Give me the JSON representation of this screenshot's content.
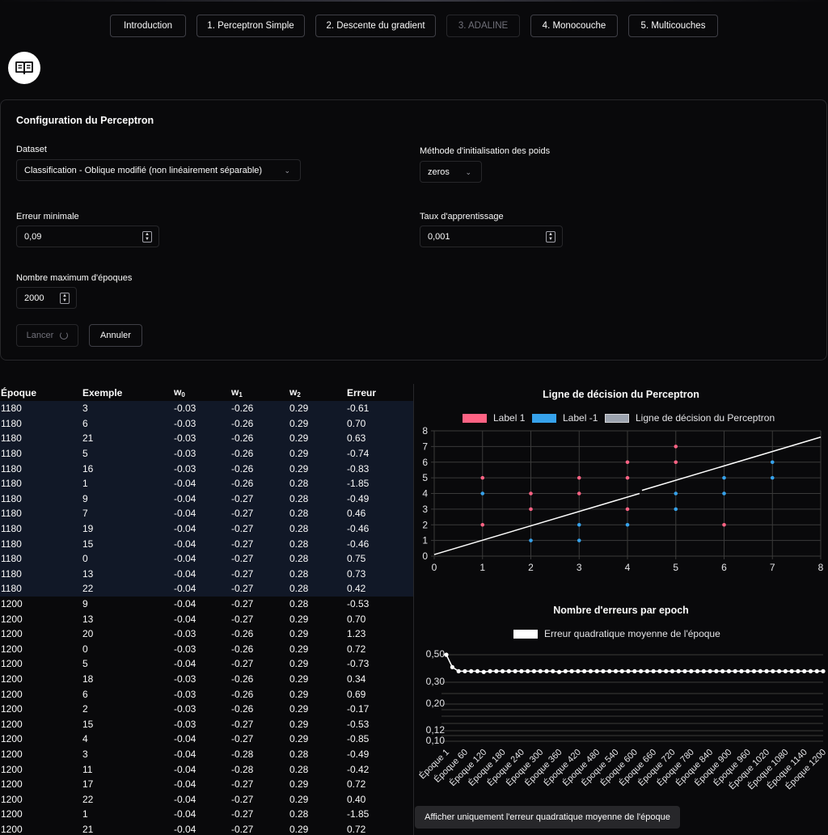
{
  "nav": {
    "tabs": [
      {
        "label": "Introduction",
        "disabled": false
      },
      {
        "label": "1. Perceptron Simple",
        "disabled": false
      },
      {
        "label": "2. Descente du gradient",
        "disabled": false
      },
      {
        "label": "3. ADALINE",
        "disabled": true
      },
      {
        "label": "4. Monocouche",
        "disabled": false
      },
      {
        "label": "5. Multicouches",
        "disabled": false
      }
    ]
  },
  "config": {
    "title": "Configuration du Perceptron",
    "dataset_label": "Dataset",
    "dataset_value": "Classification - Oblique modifié (non linéairement séparable)",
    "init_label": "Méthode d'initialisation des poids",
    "init_value": "zeros",
    "min_error_label": "Erreur minimale",
    "min_error_value": "0,09",
    "lr_label": "Taux d'apprentissage",
    "lr_value": "0,001",
    "max_epochs_label": "Nombre maximum d'époques",
    "max_epochs_value": "2000",
    "run_label": "Lancer",
    "cancel_label": "Annuler"
  },
  "table": {
    "headers": {
      "epoch": "Époque",
      "example": "Exemple",
      "w0": "w",
      "w1": "w",
      "w2": "w",
      "w0_sub": "0",
      "w1_sub": "1",
      "w2_sub": "2",
      "error": "Erreur"
    },
    "rows": [
      {
        "e": "1180",
        "x": "3",
        "w0": "-0.03",
        "w1": "-0.26",
        "w2": "0.29",
        "err": "-0.61",
        "hl": true
      },
      {
        "e": "1180",
        "x": "6",
        "w0": "-0.03",
        "w1": "-0.26",
        "w2": "0.29",
        "err": "0.70",
        "hl": true
      },
      {
        "e": "1180",
        "x": "21",
        "w0": "-0.03",
        "w1": "-0.26",
        "w2": "0.29",
        "err": "0.63",
        "hl": true
      },
      {
        "e": "1180",
        "x": "5",
        "w0": "-0.03",
        "w1": "-0.26",
        "w2": "0.29",
        "err": "-0.74",
        "hl": true
      },
      {
        "e": "1180",
        "x": "16",
        "w0": "-0.03",
        "w1": "-0.26",
        "w2": "0.29",
        "err": "-0.83",
        "hl": true
      },
      {
        "e": "1180",
        "x": "1",
        "w0": "-0.04",
        "w1": "-0.26",
        "w2": "0.28",
        "err": "-1.85",
        "hl": true
      },
      {
        "e": "1180",
        "x": "9",
        "w0": "-0.04",
        "w1": "-0.27",
        "w2": "0.28",
        "err": "-0.49",
        "hl": true
      },
      {
        "e": "1180",
        "x": "7",
        "w0": "-0.04",
        "w1": "-0.27",
        "w2": "0.28",
        "err": "0.46",
        "hl": true
      },
      {
        "e": "1180",
        "x": "19",
        "w0": "-0.04",
        "w1": "-0.27",
        "w2": "0.28",
        "err": "-0.46",
        "hl": true
      },
      {
        "e": "1180",
        "x": "15",
        "w0": "-0.04",
        "w1": "-0.27",
        "w2": "0.28",
        "err": "-0.46",
        "hl": true
      },
      {
        "e": "1180",
        "x": "0",
        "w0": "-0.04",
        "w1": "-0.27",
        "w2": "0.28",
        "err": "0.75",
        "hl": true
      },
      {
        "e": "1180",
        "x": "13",
        "w0": "-0.04",
        "w1": "-0.27",
        "w2": "0.28",
        "err": "0.73",
        "hl": true
      },
      {
        "e": "1180",
        "x": "22",
        "w0": "-0.04",
        "w1": "-0.27",
        "w2": "0.28",
        "err": "0.42",
        "hl": true
      },
      {
        "e": "1200",
        "x": "9",
        "w0": "-0.04",
        "w1": "-0.27",
        "w2": "0.28",
        "err": "-0.53",
        "hl": false
      },
      {
        "e": "1200",
        "x": "13",
        "w0": "-0.04",
        "w1": "-0.27",
        "w2": "0.29",
        "err": "0.70",
        "hl": false
      },
      {
        "e": "1200",
        "x": "20",
        "w0": "-0.03",
        "w1": "-0.26",
        "w2": "0.29",
        "err": "1.23",
        "hl": false
      },
      {
        "e": "1200",
        "x": "0",
        "w0": "-0.03",
        "w1": "-0.26",
        "w2": "0.29",
        "err": "0.72",
        "hl": false
      },
      {
        "e": "1200",
        "x": "5",
        "w0": "-0.04",
        "w1": "-0.27",
        "w2": "0.29",
        "err": "-0.73",
        "hl": false
      },
      {
        "e": "1200",
        "x": "18",
        "w0": "-0.03",
        "w1": "-0.26",
        "w2": "0.29",
        "err": "0.34",
        "hl": false
      },
      {
        "e": "1200",
        "x": "6",
        "w0": "-0.03",
        "w1": "-0.26",
        "w2": "0.29",
        "err": "0.69",
        "hl": false
      },
      {
        "e": "1200",
        "x": "2",
        "w0": "-0.03",
        "w1": "-0.26",
        "w2": "0.29",
        "err": "-0.17",
        "hl": false
      },
      {
        "e": "1200",
        "x": "15",
        "w0": "-0.03",
        "w1": "-0.27",
        "w2": "0.29",
        "err": "-0.53",
        "hl": false
      },
      {
        "e": "1200",
        "x": "4",
        "w0": "-0.04",
        "w1": "-0.27",
        "w2": "0.29",
        "err": "-0.85",
        "hl": false
      },
      {
        "e": "1200",
        "x": "3",
        "w0": "-0.04",
        "w1": "-0.28",
        "w2": "0.28",
        "err": "-0.49",
        "hl": false
      },
      {
        "e": "1200",
        "x": "11",
        "w0": "-0.04",
        "w1": "-0.28",
        "w2": "0.28",
        "err": "-0.42",
        "hl": false
      },
      {
        "e": "1200",
        "x": "17",
        "w0": "-0.04",
        "w1": "-0.27",
        "w2": "0.29",
        "err": "0.72",
        "hl": false
      },
      {
        "e": "1200",
        "x": "22",
        "w0": "-0.04",
        "w1": "-0.27",
        "w2": "0.29",
        "err": "0.40",
        "hl": false
      },
      {
        "e": "1200",
        "x": "1",
        "w0": "-0.04",
        "w1": "-0.27",
        "w2": "0.28",
        "err": "-1.85",
        "hl": false
      },
      {
        "e": "1200",
        "x": "21",
        "w0": "-0.04",
        "w1": "-0.27",
        "w2": "0.29",
        "err": "0.72",
        "hl": false
      }
    ]
  },
  "bottom_button_label": "Afficher uniquement l'erreur quadratique moyenne de l'époque",
  "chart_data": [
    {
      "type": "scatter",
      "title": "Ligne de décision du Perceptron",
      "legend_placement": "top",
      "grid": true,
      "xlim": [
        0,
        8
      ],
      "ylim": [
        0,
        8
      ],
      "x_ticks": [
        "0",
        "1",
        "2",
        "3",
        "4",
        "5",
        "6",
        "7",
        "8"
      ],
      "y_ticks": [
        "0",
        "1",
        "2",
        "3",
        "4",
        "5",
        "6",
        "7",
        "8"
      ],
      "series": [
        {
          "name": "Label 1",
          "color": "#ff6384",
          "points": [
            [
              1,
              5
            ],
            [
              1,
              2
            ],
            [
              2,
              4
            ],
            [
              2,
              3
            ],
            [
              3,
              5
            ],
            [
              3,
              4
            ],
            [
              4,
              6
            ],
            [
              4,
              5
            ],
            [
              4,
              3
            ],
            [
              5,
              7
            ],
            [
              5,
              6
            ],
            [
              6,
              2
            ]
          ]
        },
        {
          "name": "Label -1",
          "color": "#36a2eb",
          "points": [
            [
              1,
              4
            ],
            [
              2,
              1
            ],
            [
              3,
              2
            ],
            [
              3,
              1
            ],
            [
              4,
              2
            ],
            [
              5,
              4
            ],
            [
              5,
              3
            ],
            [
              6,
              5
            ],
            [
              6,
              4
            ],
            [
              7,
              6
            ],
            [
              7,
              5
            ]
          ]
        },
        {
          "name": "Ligne de décision du Perceptron",
          "color": "#ffffff",
          "type": "line",
          "points": [
            [
              0,
              0.1
            ],
            [
              4.25,
              4.0
            ],
            [
              4.3,
              4.2
            ],
            [
              8,
              7.6
            ]
          ]
        }
      ]
    },
    {
      "type": "line",
      "title": "Nombre d'erreurs par epoch",
      "legend_placement": "top",
      "series": [
        {
          "name": "Erreur quadratique moyenne de l'époque",
          "color": "#ffffff"
        }
      ],
      "y_ticks": [
        "0,50",
        "0,30",
        "0,20",
        "0,12",
        "0,10"
      ],
      "x_ticks": [
        "Époque 1",
        "Époque 60",
        "Époque 120",
        "Époque 180",
        "Époque 240",
        "Époque 300",
        "Époque 360",
        "Époque 420",
        "Époque 480",
        "Époque 540",
        "Époque 600",
        "Époque 660",
        "Époque 720",
        "Époque 780",
        "Époque 840",
        "Époque 900",
        "Époque 960",
        "Époque 1020",
        "Époque 1080",
        "Époque 1140",
        "Époque 1200"
      ],
      "x": [
        1,
        20,
        40,
        60,
        80,
        100,
        120,
        140,
        160,
        180,
        200,
        220,
        240,
        260,
        280,
        300,
        320,
        340,
        360,
        380,
        400,
        420,
        440,
        460,
        480,
        500,
        520,
        540,
        560,
        580,
        600,
        620,
        640,
        660,
        680,
        700,
        720,
        740,
        760,
        780,
        800,
        820,
        840,
        860,
        880,
        900,
        920,
        940,
        960,
        980,
        1000,
        1020,
        1040,
        1060,
        1080,
        1100,
        1120,
        1140,
        1160,
        1180,
        1200
      ],
      "values": [
        0.51,
        0.41,
        0.38,
        0.38,
        0.38,
        0.38,
        0.375,
        0.38,
        0.38,
        0.38,
        0.38,
        0.38,
        0.38,
        0.38,
        0.38,
        0.38,
        0.38,
        0.38,
        0.375,
        0.38,
        0.38,
        0.38,
        0.38,
        0.38,
        0.38,
        0.38,
        0.38,
        0.38,
        0.38,
        0.38,
        0.38,
        0.38,
        0.38,
        0.38,
        0.38,
        0.38,
        0.38,
        0.38,
        0.38,
        0.38,
        0.38,
        0.38,
        0.38,
        0.38,
        0.38,
        0.38,
        0.38,
        0.38,
        0.38,
        0.38,
        0.38,
        0.38,
        0.38,
        0.38,
        0.38,
        0.38,
        0.38,
        0.38,
        0.38,
        0.38,
        0.38
      ]
    }
  ]
}
